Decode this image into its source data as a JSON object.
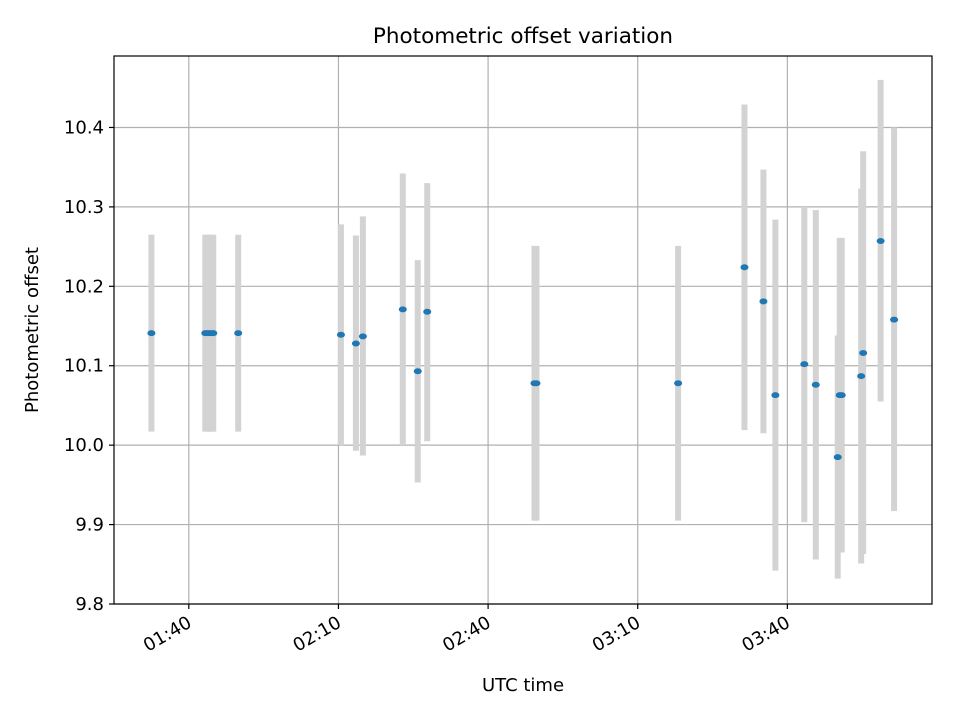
{
  "chart_data": {
    "type": "scatter",
    "title": "Photometric offset variation",
    "xlabel": "UTC time",
    "ylabel": "Photometric offset",
    "x_format": "HH:MM",
    "xlim": [
      "01:25",
      "04:09"
    ],
    "ylim": [
      9.8,
      10.49
    ],
    "xticks": [
      "01:40",
      "02:10",
      "02:40",
      "03:10",
      "03:40"
    ],
    "yticks": [
      "9.8",
      "9.9",
      "10.0",
      "10.1",
      "10.2",
      "10.3",
      "10.4"
    ],
    "grid": true,
    "colors": {
      "point": "#1f77b4",
      "errorbar": "#d3d3d3",
      "grid": "#b0b0b0",
      "axes": "#000000"
    },
    "points": [
      {
        "x": "01:32:30",
        "y": 10.141,
        "ylow": 10.017,
        "yhigh": 10.265
      },
      {
        "x": "01:43:18",
        "y": 10.141,
        "ylow": 10.017,
        "yhigh": 10.265
      },
      {
        "x": "01:43:42",
        "y": 10.141,
        "ylow": 10.017,
        "yhigh": 10.265
      },
      {
        "x": "01:44:06",
        "y": 10.141,
        "ylow": 10.017,
        "yhigh": 10.265
      },
      {
        "x": "01:44:30",
        "y": 10.141,
        "ylow": 10.017,
        "yhigh": 10.265
      },
      {
        "x": "01:44:54",
        "y": 10.141,
        "ylow": 10.017,
        "yhigh": 10.265
      },
      {
        "x": "01:49:54",
        "y": 10.141,
        "ylow": 10.017,
        "yhigh": 10.265
      },
      {
        "x": "02:10:30",
        "y": 10.139,
        "ylow": 10.0,
        "yhigh": 10.278
      },
      {
        "x": "02:13:30",
        "y": 10.128,
        "ylow": 9.993,
        "yhigh": 10.264
      },
      {
        "x": "02:14:54",
        "y": 10.137,
        "ylow": 9.987,
        "yhigh": 10.288
      },
      {
        "x": "02:22:54",
        "y": 10.171,
        "ylow": 10.0,
        "yhigh": 10.342
      },
      {
        "x": "02:25:54",
        "y": 10.093,
        "ylow": 9.953,
        "yhigh": 10.233
      },
      {
        "x": "02:27:48",
        "y": 10.168,
        "ylow": 10.005,
        "yhigh": 10.33
      },
      {
        "x": "02:49:18",
        "y": 10.078,
        "ylow": 9.905,
        "yhigh": 10.251
      },
      {
        "x": "02:49:42",
        "y": 10.078,
        "ylow": 9.905,
        "yhigh": 10.251
      },
      {
        "x": "03:18:06",
        "y": 10.078,
        "ylow": 9.905,
        "yhigh": 10.251
      },
      {
        "x": "03:31:24",
        "y": 10.224,
        "ylow": 10.019,
        "yhigh": 10.429
      },
      {
        "x": "03:35:12",
        "y": 10.181,
        "ylow": 10.015,
        "yhigh": 10.347
      },
      {
        "x": "03:37:36",
        "y": 10.063,
        "ylow": 9.842,
        "yhigh": 10.284
      },
      {
        "x": "03:43:24",
        "y": 10.102,
        "ylow": 9.903,
        "yhigh": 10.3
      },
      {
        "x": "03:45:42",
        "y": 10.076,
        "ylow": 9.856,
        "yhigh": 10.296
      },
      {
        "x": "03:50:06",
        "y": 9.985,
        "ylow": 9.832,
        "yhigh": 10.138
      },
      {
        "x": "03:50:30",
        "y": 10.063,
        "ylow": 9.865,
        "yhigh": 10.261
      },
      {
        "x": "03:50:54",
        "y": 10.063,
        "ylow": 9.865,
        "yhigh": 10.261
      },
      {
        "x": "03:54:48",
        "y": 10.087,
        "ylow": 9.851,
        "yhigh": 10.323
      },
      {
        "x": "03:55:12",
        "y": 10.116,
        "ylow": 9.863,
        "yhigh": 10.37
      },
      {
        "x": "03:58:42",
        "y": 10.257,
        "ylow": 10.055,
        "yhigh": 10.46
      },
      {
        "x": "04:01:24",
        "y": 10.158,
        "ylow": 9.917,
        "yhigh": 10.4
      }
    ]
  }
}
